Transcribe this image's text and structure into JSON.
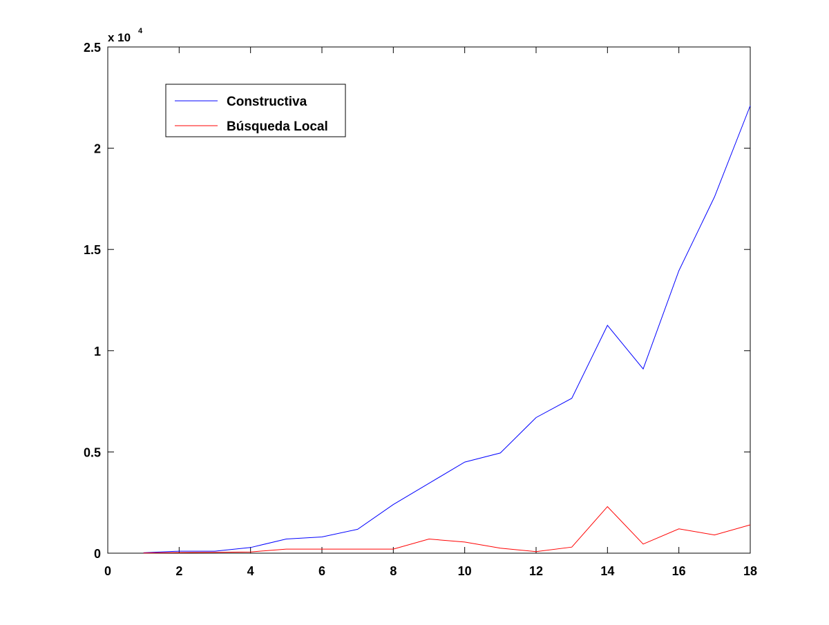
{
  "chart_data": {
    "type": "line",
    "title": "",
    "xlabel": "",
    "ylabel": "",
    "xlim": [
      0,
      18
    ],
    "ylim": [
      0,
      25000
    ],
    "xticks": [
      0,
      2,
      4,
      6,
      8,
      10,
      12,
      14,
      16,
      18
    ],
    "xtick_labels": [
      "0",
      "2",
      "4",
      "6",
      "8",
      "10",
      "12",
      "14",
      "16",
      "18"
    ],
    "yticks": [
      0,
      5000,
      10000,
      15000,
      20000,
      25000
    ],
    "ytick_labels": [
      "0",
      "0.5",
      "1",
      "1.5",
      "2",
      "2.5"
    ],
    "y_multiplier": {
      "base": "x 10",
      "exponent": "4"
    },
    "grid": false,
    "legend_position": "top-left",
    "x": [
      1,
      2,
      3,
      4,
      5,
      6,
      7,
      8,
      9,
      10,
      11,
      12,
      13,
      14,
      15,
      16,
      17,
      18
    ],
    "series": [
      {
        "name": "Constructiva",
        "color": "#0000ff",
        "values": [
          20,
          100,
          100,
          280,
          700,
          800,
          1180,
          2400,
          3450,
          4500,
          4950,
          6700,
          7650,
          11250,
          9100,
          13950,
          17600,
          22100
        ]
      },
      {
        "name": "Búsqueda Local",
        "color": "#ff0000",
        "values": [
          10,
          30,
          40,
          60,
          200,
          200,
          200,
          200,
          700,
          550,
          250,
          80,
          300,
          2300,
          450,
          1200,
          900,
          1400
        ]
      }
    ]
  }
}
